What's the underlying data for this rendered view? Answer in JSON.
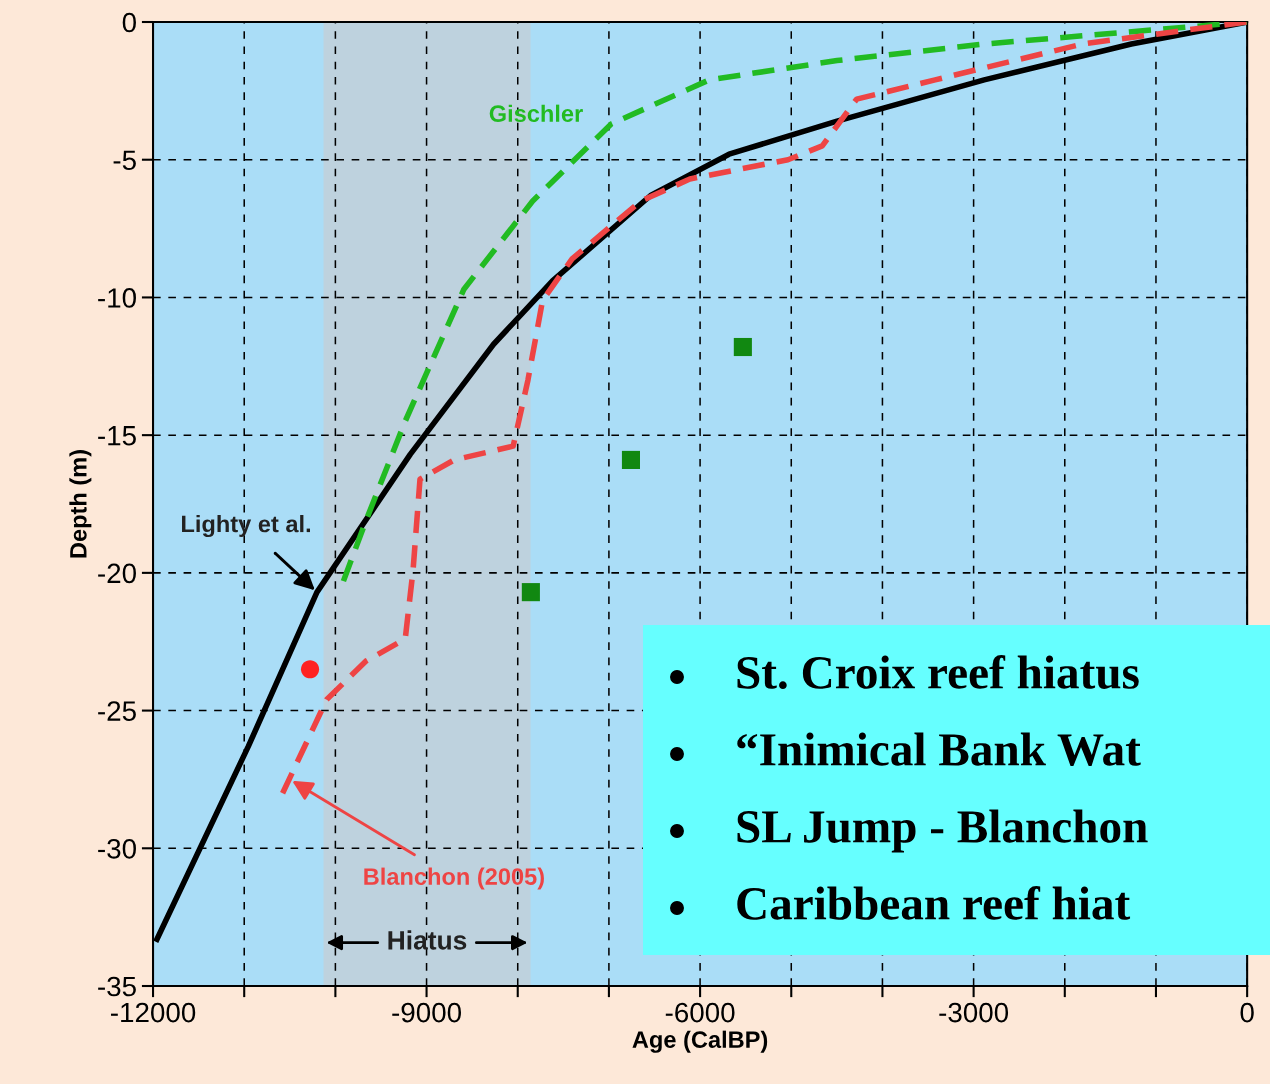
{
  "chart_data": {
    "type": "line",
    "xlabel": "Age (CalBP)",
    "ylabel": "Depth (m)",
    "xlim": [
      -12000,
      0
    ],
    "ylim": [
      -35,
      0
    ],
    "xticks": [
      -12000,
      {
        "value": -11000,
        "label": null
      },
      {
        "value": -10000,
        "label": null
      },
      -9000,
      {
        "value": -8000,
        "label": null
      },
      {
        "value": -7000,
        "label": null
      },
      -6000,
      {
        "value": -5000,
        "label": null
      },
      {
        "value": -4000,
        "label": null
      },
      -3000,
      {
        "value": -2000,
        "label": null
      },
      {
        "value": -1000,
        "label": null
      },
      0
    ],
    "yticks": [
      -35,
      -30,
      -25,
      -20,
      -15,
      -10,
      -5,
      0
    ],
    "grid": true,
    "series": [
      {
        "name": "Lighty et al.",
        "color": "#000000",
        "line_style": "solid",
        "x": [
          -11957,
          -10955,
          -10202,
          -9179,
          -8265,
          -7619,
          -6543,
          -5682,
          -4498,
          -2884,
          -1270,
          0
        ],
        "values": [
          -33.3,
          -26.3,
          -20.7,
          -15.7,
          -11.7,
          -9.4,
          -6.3,
          -4.8,
          -3.6,
          -2.1,
          -0.8,
          0
        ]
      },
      {
        "name": "Gischler",
        "color": "#22bb22",
        "line_style": "dashed",
        "x": [
          -9912,
          -9664,
          -9235,
          -8590,
          -7836,
          -6975,
          -5899,
          -4498,
          -2884,
          0
        ],
        "values": [
          -20.3,
          -18.1,
          -14.5,
          -9.7,
          -6.5,
          -3.7,
          -2.1,
          -1.4,
          -0.8,
          0
        ]
      },
      {
        "name": "Blanchon (2005)",
        "color": "#ee4444",
        "line_style": "dashed",
        "x": [
          -10579,
          -10095,
          -9664,
          -9234,
          -9148,
          -9072,
          -8696,
          -8050,
          -7888,
          -7727,
          -7404,
          -6650,
          -6112,
          -5036,
          -4660,
          -4283,
          -3422,
          -1808,
          0
        ],
        "values": [
          -28.0,
          -24.6,
          -23.2,
          -22.4,
          -19.9,
          -16.6,
          -15.9,
          -15.4,
          -13.0,
          -10.1,
          -8.6,
          -6.5,
          -5.7,
          -5.0,
          -4.5,
          -2.8,
          -2.1,
          -0.8,
          0
        ]
      },
      {
        "color": "#118811",
        "type": "scatter",
        "marker": "square",
        "x": [
          -7856,
          -6758,
          -5531
        ],
        "values": [
          -20.7,
          -15.9,
          -11.8
        ]
      },
      {
        "color": "#ff2222",
        "type": "scatter",
        "marker": "circle",
        "x": [
          -10278
        ],
        "values": [
          -23.5
        ]
      }
    ],
    "bands": [
      {
        "axis": "x",
        "from": -10130,
        "to": -7860,
        "label": "Hiatus",
        "color": "#bed2de"
      }
    ],
    "annotations": [
      "St. Croix reef hiatus",
      "“Inimical Bank Wat",
      "SL Jump - Blanchon",
      "Caribbean reef hiat"
    ]
  }
}
